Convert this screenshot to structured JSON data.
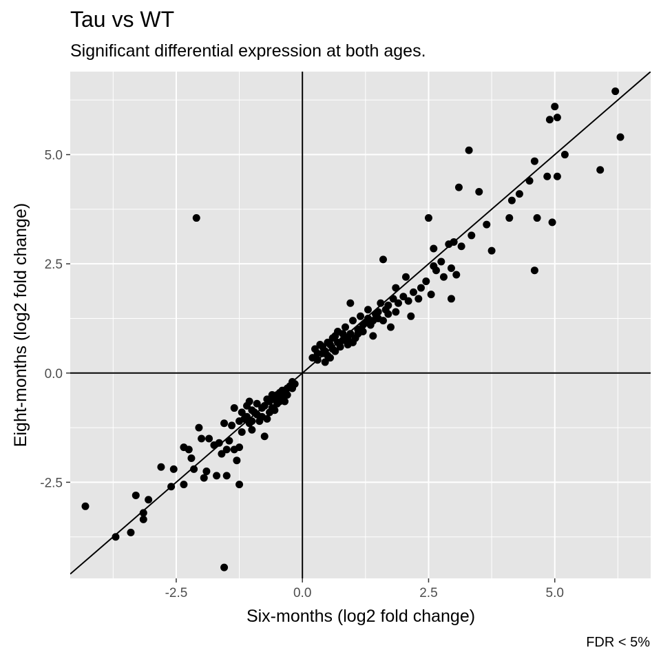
{
  "chart_data": {
    "type": "scatter",
    "title": "Tau vs WT",
    "subtitle": "Significant differential expression at both ages.",
    "caption": "FDR < 5%",
    "xlabel": "Six-months (log2 fold change)",
    "ylabel": "Eight-months (log2 fold change)",
    "xlim": [
      -4.6,
      6.9
    ],
    "ylim": [
      -4.7,
      6.9
    ],
    "x_ticks": [
      -2.5,
      0.0,
      2.5,
      5.0
    ],
    "x_tick_labels": [
      "-2.5",
      "0.0",
      "2.5",
      "5.0"
    ],
    "y_ticks": [
      -2.5,
      0.0,
      2.5,
      5.0
    ],
    "y_tick_labels": [
      "-2.5",
      "0.0",
      "2.5",
      "5.0"
    ],
    "grid": true,
    "reference_lines": {
      "vline_x": 0,
      "hline_y": 0,
      "fit_slope": 1.0,
      "fit_intercept": 0
    },
    "point_color": "#000000",
    "panel_background": "#e5e5e5",
    "grid_color": "#ffffff",
    "points": [
      [
        -4.3,
        -3.05
      ],
      [
        -3.7,
        -3.75
      ],
      [
        -3.4,
        -3.65
      ],
      [
        -3.3,
        -2.8
      ],
      [
        -3.15,
        -3.2
      ],
      [
        -3.15,
        -3.35
      ],
      [
        -3.05,
        -2.9
      ],
      [
        -2.8,
        -2.15
      ],
      [
        -2.6,
        -2.6
      ],
      [
        -2.55,
        -2.2
      ],
      [
        -2.35,
        -2.55
      ],
      [
        -2.35,
        -1.7
      ],
      [
        -2.25,
        -1.75
      ],
      [
        -2.2,
        -1.95
      ],
      [
        -2.15,
        -2.2
      ],
      [
        -2.1,
        3.55
      ],
      [
        -2.05,
        -1.25
      ],
      [
        -2.0,
        -1.5
      ],
      [
        -1.95,
        -2.4
      ],
      [
        -1.9,
        -2.25
      ],
      [
        -1.85,
        -1.5
      ],
      [
        -1.75,
        -1.65
      ],
      [
        -1.7,
        -2.35
      ],
      [
        -1.65,
        -1.6
      ],
      [
        -1.6,
        -1.85
      ],
      [
        -1.5,
        -2.35
      ],
      [
        -1.55,
        -1.15
      ],
      [
        -1.5,
        -1.75
      ],
      [
        -1.45,
        -1.55
      ],
      [
        -1.4,
        -1.2
      ],
      [
        -1.35,
        -0.8
      ],
      [
        -1.35,
        -1.75
      ],
      [
        -1.3,
        -2.0
      ],
      [
        -1.25,
        -2.55
      ],
      [
        -1.25,
        -1.7
      ],
      [
        -1.2,
        -1.35
      ],
      [
        -1.15,
        -1.05
      ],
      [
        -1.1,
        -0.75
      ],
      [
        -1.05,
        -1.15
      ],
      [
        -1.0,
        -1.3
      ],
      [
        -0.95,
        -0.9
      ],
      [
        -0.9,
        -0.7
      ],
      [
        -0.85,
        -1.1
      ],
      [
        -0.8,
        -1.0
      ],
      [
        -0.75,
        -0.75
      ],
      [
        -0.7,
        -1.05
      ],
      [
        -0.65,
        -0.65
      ],
      [
        -0.6,
        -0.8
      ],
      [
        -0.55,
        -0.6
      ],
      [
        -0.5,
        -0.7
      ],
      [
        -0.45,
        -0.45
      ],
      [
        -0.4,
        -0.55
      ],
      [
        -0.35,
        -0.4
      ],
      [
        -0.3,
        -0.35
      ],
      [
        -0.25,
        -0.3
      ],
      [
        -0.2,
        -0.2
      ],
      [
        -0.15,
        -0.25
      ],
      [
        -1.55,
        -4.45
      ],
      [
        -1.25,
        -1.1
      ],
      [
        -1.2,
        -0.9
      ],
      [
        -1.1,
        -1.0
      ],
      [
        -1.0,
        -0.85
      ],
      [
        -0.9,
        -0.95
      ],
      [
        -0.7,
        -0.6
      ],
      [
        -0.65,
        -0.9
      ],
      [
        -0.5,
        -0.5
      ],
      [
        -0.45,
        -0.65
      ],
      [
        -0.3,
        -0.5
      ],
      [
        -0.2,
        -0.35
      ],
      [
        -1.0,
        -1.1
      ],
      [
        -0.8,
        -0.8
      ],
      [
        -0.6,
        -0.5
      ],
      [
        -0.4,
        -0.4
      ],
      [
        -0.55,
        -0.85
      ],
      [
        -0.75,
        -1.45
      ],
      [
        -0.35,
        -0.65
      ],
      [
        -1.05,
        -0.65
      ],
      [
        0.2,
        0.35
      ],
      [
        0.25,
        0.55
      ],
      [
        0.3,
        0.3
      ],
      [
        0.35,
        0.65
      ],
      [
        0.4,
        0.45
      ],
      [
        0.45,
        0.5
      ],
      [
        0.5,
        0.7
      ],
      [
        0.55,
        0.35
      ],
      [
        0.6,
        0.8
      ],
      [
        0.65,
        0.5
      ],
      [
        0.7,
        0.95
      ],
      [
        0.75,
        0.6
      ],
      [
        0.8,
        0.75
      ],
      [
        0.85,
        1.05
      ],
      [
        0.9,
        0.65
      ],
      [
        0.95,
        0.9
      ],
      [
        1.0,
        1.2
      ],
      [
        1.05,
        0.8
      ],
      [
        1.1,
        1.0
      ],
      [
        1.15,
        1.3
      ],
      [
        1.2,
        0.95
      ],
      [
        1.25,
        1.15
      ],
      [
        1.3,
        1.45
      ],
      [
        1.35,
        1.1
      ],
      [
        1.4,
        0.85
      ],
      [
        1.45,
        1.35
      ],
      [
        1.5,
        1.25
      ],
      [
        1.55,
        1.6
      ],
      [
        1.6,
        1.2
      ],
      [
        1.65,
        1.45
      ],
      [
        1.7,
        1.55
      ],
      [
        1.75,
        1.05
      ],
      [
        1.8,
        1.7
      ],
      [
        1.85,
        1.4
      ],
      [
        1.9,
        1.6
      ],
      [
        2.0,
        1.75
      ],
      [
        2.05,
        2.2
      ],
      [
        2.1,
        1.65
      ],
      [
        2.15,
        1.3
      ],
      [
        2.2,
        1.85
      ],
      [
        2.3,
        1.7
      ],
      [
        2.35,
        1.95
      ],
      [
        2.45,
        2.1
      ],
      [
        2.5,
        3.55
      ],
      [
        2.55,
        1.8
      ],
      [
        2.6,
        2.45
      ],
      [
        2.6,
        2.85
      ],
      [
        2.65,
        2.35
      ],
      [
        2.75,
        2.55
      ],
      [
        2.8,
        2.2
      ],
      [
        2.9,
        2.95
      ],
      [
        2.95,
        1.7
      ],
      [
        2.95,
        2.4
      ],
      [
        3.0,
        3.0
      ],
      [
        3.05,
        2.25
      ],
      [
        3.1,
        4.25
      ],
      [
        3.15,
        2.9
      ],
      [
        3.3,
        5.1
      ],
      [
        3.35,
        3.15
      ],
      [
        3.5,
        4.15
      ],
      [
        3.65,
        3.4
      ],
      [
        3.75,
        2.8
      ],
      [
        4.1,
        3.55
      ],
      [
        4.15,
        3.95
      ],
      [
        4.3,
        4.1
      ],
      [
        4.5,
        4.4
      ],
      [
        4.6,
        2.35
      ],
      [
        4.6,
        4.85
      ],
      [
        4.65,
        3.55
      ],
      [
        4.85,
        4.5
      ],
      [
        4.9,
        5.8
      ],
      [
        4.95,
        3.45
      ],
      [
        5.0,
        6.1
      ],
      [
        5.05,
        5.85
      ],
      [
        5.05,
        4.5
      ],
      [
        5.2,
        5.0
      ],
      [
        5.9,
        4.65
      ],
      [
        6.2,
        6.45
      ],
      [
        6.3,
        5.4
      ],
      [
        0.5,
        0.4
      ],
      [
        0.6,
        0.55
      ],
      [
        0.7,
        0.7
      ],
      [
        0.9,
        0.8
      ],
      [
        1.0,
        0.7
      ],
      [
        1.2,
        1.1
      ],
      [
        1.4,
        1.2
      ],
      [
        1.1,
        0.9
      ],
      [
        0.8,
        0.9
      ],
      [
        0.65,
        0.85
      ],
      [
        0.4,
        0.6
      ],
      [
        0.3,
        0.45
      ],
      [
        1.3,
        1.25
      ],
      [
        1.5,
        1.4
      ],
      [
        1.7,
        1.35
      ],
      [
        0.95,
        1.6
      ],
      [
        1.6,
        2.6
      ],
      [
        1.85,
        1.95
      ],
      [
        0.45,
        0.25
      ],
      [
        0.55,
        0.65
      ]
    ]
  }
}
